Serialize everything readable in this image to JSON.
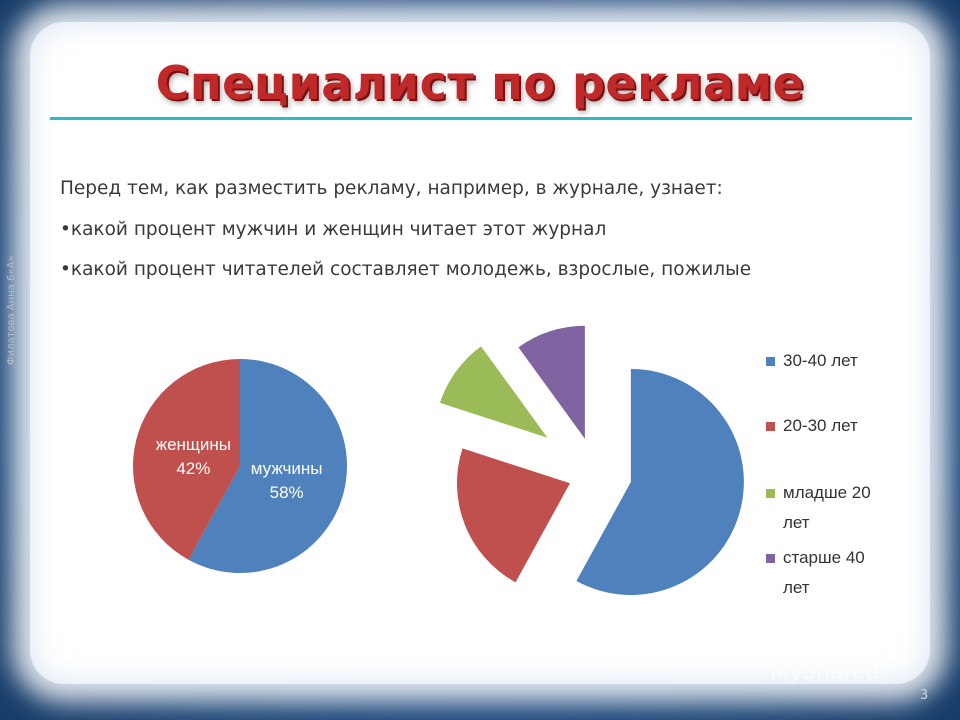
{
  "slide": {
    "title": "Специалист по рекламе",
    "intro": "Перед тем, как разместить рекламу, например, в журнале, узнает:",
    "bullets": [
      "•какой процент  мужчин и женщин читает этот журнал",
      "•какой процент  читателей составляет молодежь, взрослые, пожилые"
    ],
    "side_credit": "Филатова Анна 6«А»",
    "watermark": "MyShared",
    "page_number": "3"
  },
  "colors": {
    "blue": "#4f81bd",
    "red": "#c0504d",
    "green": "#9bbb59",
    "purple": "#8064a2",
    "title": "#c0292a",
    "rule": "#32b6c9"
  },
  "chart_data": [
    {
      "type": "pie",
      "slices": [
        {
          "label": "мужчины",
          "value": 58,
          "value_label": "58%",
          "color": "#4f81bd"
        },
        {
          "label": "женщины",
          "value": 42,
          "value_label": "42%",
          "color": "#c0504d"
        }
      ]
    },
    {
      "type": "pie",
      "exploded": true,
      "legend_position": "right",
      "slices": [
        {
          "label": "30-40 лет",
          "value": 58,
          "color": "#4f81bd"
        },
        {
          "label": "20-30 лет",
          "value": 22,
          "color": "#c0504d"
        },
        {
          "label": "младше 20 лет",
          "value": 10,
          "color": "#9bbb59"
        },
        {
          "label": "старше 40 лет",
          "value": 10,
          "color": "#8064a2"
        }
      ],
      "legend": [
        {
          "line1": "30-40 лет",
          "line2": ""
        },
        {
          "line1": "20-30 лет",
          "line2": ""
        },
        {
          "line1": "младше 20",
          "line2": "лет"
        },
        {
          "line1": "старше 40",
          "line2": "лет"
        }
      ]
    }
  ]
}
